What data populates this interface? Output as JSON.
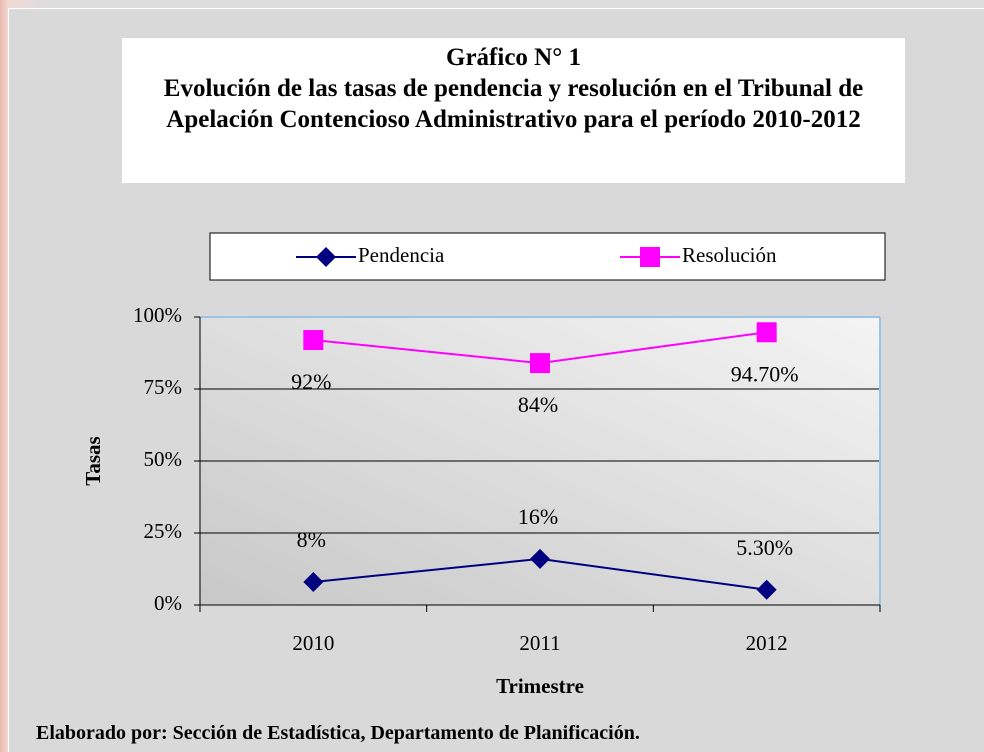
{
  "chart_data": {
    "type": "line",
    "title": "Gráfico N° 1",
    "subtitle": "Evolución de las tasas de pendencia y resolución en el Tribunal de Apelación Contencioso Administrativo para el período 2010-2012",
    "x_label": "Trimestre",
    "y_label": "Tasas",
    "categories": [
      "2010",
      "2011",
      "2012"
    ],
    "series": [
      {
        "name": "Pendencia",
        "color": "#000080",
        "marker": "diamond",
        "values": [
          8,
          16,
          5.3
        ],
        "value_labels": [
          "8%",
          "16%",
          "5.30%"
        ]
      },
      {
        "name": "Resolución",
        "color": "#ff00ff",
        "marker": "square",
        "values": [
          92,
          84,
          94.7
        ],
        "value_labels": [
          "92%",
          "84%",
          "94.70%"
        ]
      }
    ],
    "ylim": [
      0,
      100
    ],
    "yticks": [
      {
        "value": 0,
        "label": "0%"
      },
      {
        "value": 25,
        "label": "25%"
      },
      {
        "value": 50,
        "label": "50%"
      },
      {
        "value": 75,
        "label": "75%"
      },
      {
        "value": 100,
        "label": "100%"
      }
    ],
    "grid": true,
    "legend": "top",
    "source": "Elaborado por: Sección de Estadística, Departamento de Planificación."
  }
}
